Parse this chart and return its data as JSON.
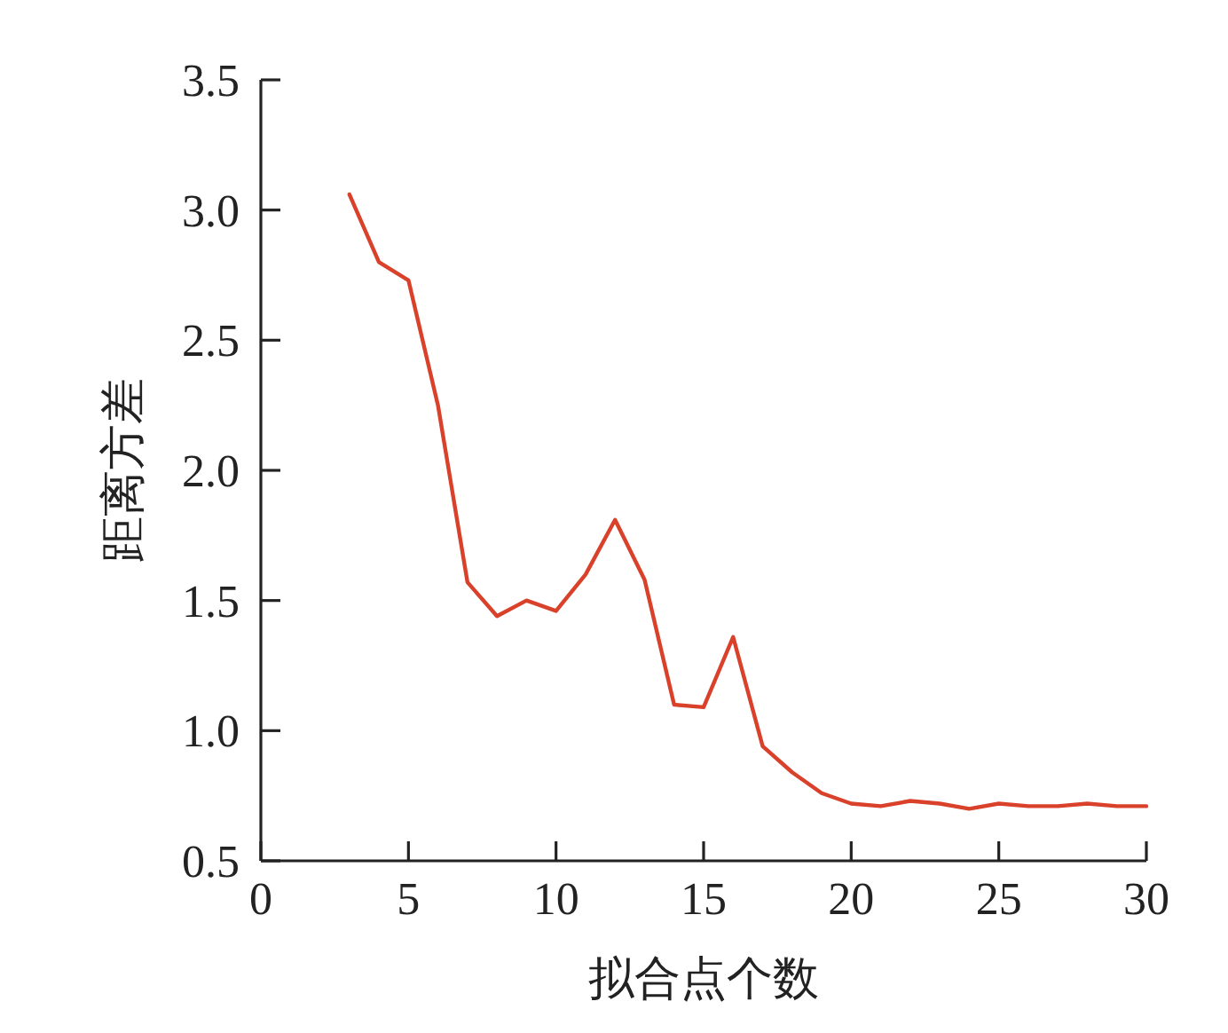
{
  "chart_data": {
    "type": "line",
    "xlabel": "拟合点个数",
    "ylabel": "距离方差",
    "x": [
      3,
      4,
      5,
      6,
      7,
      8,
      9,
      10,
      11,
      12,
      13,
      14,
      15,
      16,
      17,
      18,
      19,
      20,
      21,
      22,
      23,
      24,
      25,
      26,
      27,
      28,
      29,
      30
    ],
    "series": [
      {
        "color": "#d9412b",
        "values": [
          3.06,
          2.8,
          2.73,
          2.25,
          1.57,
          1.44,
          1.5,
          1.46,
          1.6,
          1.81,
          1.58,
          1.1,
          1.09,
          1.36,
          0.94,
          0.84,
          0.76,
          0.72,
          0.71,
          0.73,
          0.72,
          0.7,
          0.72,
          0.71,
          0.71,
          0.72,
          0.71,
          0.71
        ]
      }
    ],
    "xlim": [
      0,
      30
    ],
    "xticks": [
      0,
      5,
      10,
      15,
      20,
      25,
      30
    ],
    "ylim": [
      0.5,
      3.5
    ],
    "yticks": [
      {
        "value": 0.5,
        "label": "0.5"
      },
      {
        "value": 1,
        "label": "1.0"
      },
      {
        "value": 1.5,
        "label": "1.5"
      },
      {
        "value": 2,
        "label": "2.0"
      },
      {
        "value": 2.5,
        "label": "2.5"
      },
      {
        "value": 3,
        "label": "3.0"
      },
      {
        "value": 3.5,
        "label": "3.5"
      }
    ],
    "grid": false,
    "marker": "none",
    "line_style": "solid"
  }
}
